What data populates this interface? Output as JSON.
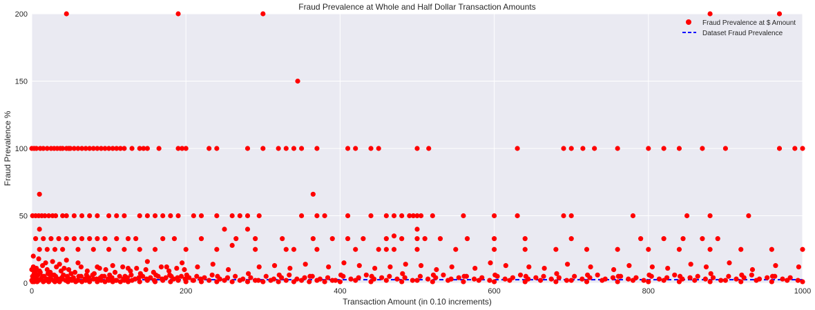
{
  "chart_data": {
    "type": "scatter",
    "title": "Fraud Prevalence at Whole and Half Dollar Transaction Amounts",
    "xlabel": "Transaction Amount (in 0.10 increments)",
    "ylabel": "Fraud Prevalence %",
    "xlim": [
      0,
      1000
    ],
    "ylim": [
      0,
      200
    ],
    "xticks": [
      "0",
      "200",
      "400",
      "600",
      "800",
      "1000"
    ],
    "yticks": [
      "0",
      "50",
      "100",
      "150",
      "200"
    ],
    "grid": true,
    "legend_position": "top-right",
    "colors": {
      "background": "#eaeaf2",
      "grid": "#ffffff",
      "points": "#ff0000",
      "reference_line": "#0000ff"
    },
    "series": [
      {
        "name": "Fraud Prevalence at $ Amount",
        "marker": "o",
        "x": [
          0,
          1,
          2,
          3,
          4,
          5,
          7,
          9,
          12,
          15,
          18,
          22,
          25,
          28,
          30,
          33,
          36,
          40,
          44,
          47,
          52,
          57,
          60,
          65,
          70,
          75,
          80,
          85,
          90,
          95,
          100,
          105,
          110,
          115,
          120,
          125,
          130,
          140,
          150,
          160,
          170,
          180,
          190,
          200,
          210,
          220,
          230,
          240,
          250,
          260,
          270,
          280,
          290,
          300,
          310,
          320,
          330,
          340,
          350,
          360,
          370,
          380,
          390,
          400,
          420,
          440,
          460,
          480,
          500,
          520,
          540,
          560,
          580,
          600,
          620,
          640,
          660,
          680,
          700,
          720,
          740,
          760,
          780,
          800,
          820,
          840,
          860,
          880,
          900,
          920,
          940,
          960,
          980,
          1000,
          1,
          3,
          5,
          8,
          11,
          16,
          21,
          26,
          31,
          41,
          51,
          61,
          71,
          81,
          91,
          101,
          121,
          141,
          161,
          181,
          201,
          241,
          281,
          321,
          361,
          401,
          441,
          481,
          521,
          561,
          601,
          641,
          681,
          721,
          761,
          801,
          841,
          881,
          921,
          961,
          0,
          2,
          4,
          6,
          10,
          14,
          20,
          24,
          32,
          38,
          42,
          48,
          56,
          64,
          72,
          88,
          96,
          108,
          118,
          128,
          136,
          148,
          158,
          168,
          178,
          188,
          198,
          2,
          6,
          8,
          14,
          19,
          24,
          29,
          34,
          39,
          46,
          49,
          54,
          59,
          64,
          69,
          74,
          79,
          84,
          89,
          94,
          99,
          104,
          109,
          114,
          119,
          124,
          129,
          134,
          139,
          144,
          149,
          154,
          159,
          164,
          169,
          174,
          179,
          184,
          189,
          194,
          199,
          204,
          209,
          214,
          219,
          224,
          234,
          244,
          254,
          264,
          274,
          284,
          294,
          304,
          314,
          324,
          334,
          344,
          354,
          364,
          374,
          384,
          394,
          404,
          414,
          424,
          434,
          444,
          454,
          464,
          474,
          484,
          494,
          504,
          514,
          524,
          534,
          544,
          554,
          564,
          574,
          584,
          594,
          604,
          614,
          624,
          634,
          644,
          654,
          664,
          674,
          684,
          694,
          704,
          714,
          724,
          734,
          744,
          754,
          764,
          774,
          784,
          794,
          804,
          814,
          824,
          834,
          844,
          854,
          864,
          874,
          884,
          894,
          904,
          914,
          924,
          934,
          944,
          954,
          964,
          974,
          984,
          994,
          10,
          45,
          190,
          300,
          880,
          970,
          345,
          0,
          3,
          6,
          11,
          15,
          20,
          25,
          29,
          33,
          37,
          40,
          45,
          48,
          50,
          55,
          60,
          65,
          70,
          75,
          80,
          85,
          90,
          95,
          100,
          105,
          110,
          115,
          120,
          130,
          140,
          145,
          150,
          165,
          190,
          195,
          200,
          230,
          240,
          280,
          300,
          320,
          330,
          340,
          350,
          370,
          410,
          420,
          440,
          450,
          500,
          515,
          630,
          690,
          700,
          715,
          730,
          760,
          800,
          820,
          840,
          870,
          900,
          970,
          990,
          1000,
          1,
          5,
          9,
          13,
          17,
          22,
          27,
          31,
          40,
          45,
          55,
          65,
          75,
          85,
          100,
          110,
          120,
          140,
          150,
          160,
          170,
          180,
          190,
          210,
          220,
          240,
          260,
          270,
          280,
          295,
          350,
          370,
          380,
          410,
          440,
          460,
          470,
          480,
          490,
          495,
          500,
          505,
          520,
          560,
          600,
          630,
          690,
          700,
          780,
          850,
          880,
          930,
          10,
          250,
          260,
          280,
          340,
          460,
          470,
          500,
          510,
          365,
          5,
          15,
          25,
          35,
          45,
          55,
          65,
          75,
          85,
          95,
          110,
          125,
          135,
          170,
          185,
          220,
          265,
          290,
          325,
          365,
          390,
          410,
          430,
          460,
          480,
          500,
          530,
          565,
          600,
          640,
          700,
          790,
          820,
          845,
          870,
          890,
          10,
          20,
          30,
          40,
          60,
          80,
          100,
          120,
          140,
          160,
          200,
          240,
          290,
          330,
          370,
          420,
          450,
          470,
          500,
          550,
          600,
          640,
          680,
          720,
          760,
          800,
          840,
          880,
          920,
          960,
          1000,
          2,
          9,
          18,
          27,
          36,
          45,
          60,
          85,
          105,
          125,
          150,
          175,
          195,
          215,
          235,
          255,
          295,
          315,
          335,
          355,
          385,
          405,
          425,
          445,
          465,
          485,
          505,
          525,
          545,
          575,
          595,
          615,
          645,
          665,
          695,
          725,
          755,
          775,
          805,
          825,
          855,
          875,
          905,
          935,
          965,
          995
        ],
        "y": [
          2,
          1,
          3,
          1,
          2,
          4,
          1,
          2,
          3,
          1,
          2,
          1,
          3,
          2,
          1,
          2,
          1,
          3,
          2,
          1,
          2,
          1,
          2,
          1,
          2,
          1,
          3,
          1,
          2,
          1,
          2,
          1,
          2,
          1,
          2,
          1,
          2,
          1,
          2,
          1,
          2,
          1,
          2,
          1,
          2,
          1,
          2,
          1,
          2,
          1,
          2,
          1,
          2,
          1,
          2,
          1,
          2,
          1,
          2,
          1,
          2,
          1,
          2,
          1,
          2,
          1,
          2,
          1,
          2,
          1,
          2,
          1,
          2,
          1,
          2,
          1,
          2,
          1,
          2,
          1,
          2,
          1,
          2,
          1,
          2,
          1,
          2,
          1,
          2,
          1,
          2,
          1,
          2,
          1,
          5,
          7,
          9,
          6,
          8,
          5,
          7,
          6,
          5,
          6,
          7,
          5,
          6,
          7,
          5,
          6,
          5,
          7,
          6,
          5,
          6,
          5,
          7,
          6,
          5,
          6,
          5,
          7,
          6,
          5,
          6,
          5,
          7,
          6,
          5,
          6,
          5,
          7,
          6,
          5,
          10,
          12,
          8,
          11,
          9,
          13,
          10,
          8,
          12,
          9,
          11,
          10,
          8,
          12,
          9,
          11,
          10,
          8,
          12,
          9,
          11,
          10,
          8,
          12,
          9,
          11,
          10,
          3,
          4,
          2,
          5,
          3,
          4,
          6,
          3,
          4,
          5,
          3,
          4,
          2,
          5,
          3,
          4,
          6,
          3,
          4,
          5,
          3,
          4,
          2,
          5,
          3,
          4,
          6,
          3,
          4,
          5,
          3,
          4,
          2,
          5,
          3,
          4,
          6,
          3,
          4,
          5,
          3,
          4,
          2,
          5,
          3,
          4,
          6,
          3,
          4,
          5,
          3,
          4,
          2,
          5,
          3,
          4,
          6,
          3,
          4,
          5,
          3,
          4,
          2,
          5,
          3,
          4,
          6,
          3,
          4,
          5,
          3,
          4,
          2,
          5,
          3,
          4,
          6,
          3,
          4,
          5,
          3,
          4,
          2,
          5,
          3,
          4,
          6,
          3,
          4,
          5,
          3,
          4,
          2,
          5,
          3,
          4,
          6,
          3,
          4,
          5,
          3,
          4,
          2,
          5,
          3,
          4,
          6,
          3,
          4,
          5,
          3,
          4,
          2,
          5,
          3,
          4,
          6,
          3,
          4,
          5,
          3,
          4,
          2,
          66,
          200,
          200,
          200,
          200,
          200,
          150,
          100,
          100,
          100,
          100,
          100,
          100,
          100,
          100,
          100,
          100,
          100,
          100,
          100,
          100,
          100,
          100,
          100,
          100,
          100,
          100,
          100,
          100,
          100,
          100,
          100,
          100,
          100,
          100,
          100,
          100,
          100,
          100,
          100,
          100,
          100,
          100,
          100,
          100,
          100,
          100,
          100,
          100,
          100,
          100,
          100,
          100,
          100,
          100,
          100,
          100,
          100,
          100,
          100,
          100,
          100,
          100,
          100,
          100,
          100,
          100,
          100,
          100,
          100,
          100,
          100,
          50,
          50,
          50,
          50,
          50,
          50,
          50,
          50,
          50,
          50,
          50,
          50,
          50,
          50,
          50,
          50,
          50,
          50,
          50,
          50,
          50,
          50,
          50,
          50,
          50,
          50,
          50,
          50,
          50,
          50,
          50,
          50,
          50,
          50,
          50,
          50,
          50,
          50,
          50,
          50,
          50,
          50,
          50,
          50,
          50,
          50,
          50,
          50,
          50,
          50,
          50,
          50,
          40,
          40,
          28,
          40,
          25,
          25,
          35,
          40,
          33,
          66,
          33,
          33,
          33,
          33,
          33,
          33,
          33,
          33,
          33,
          33,
          33,
          33,
          33,
          33,
          33,
          33,
          33,
          33,
          33,
          33,
          33,
          33,
          33,
          33,
          33,
          33,
          33,
          33,
          33,
          33,
          33,
          33,
          33,
          33,
          33,
          33,
          25,
          25,
          25,
          25,
          25,
          25,
          25,
          25,
          25,
          25,
          25,
          25,
          25,
          25,
          25,
          25,
          25,
          25,
          25,
          25,
          25,
          25,
          25,
          25,
          25,
          25,
          25,
          25,
          25,
          25,
          25,
          20,
          18,
          15,
          16,
          14,
          17,
          15,
          12,
          13,
          11,
          16,
          12,
          15,
          12,
          14,
          10,
          12,
          13,
          11,
          14,
          12,
          15,
          13,
          11,
          12,
          14,
          13,
          10,
          12,
          11,
          15,
          13,
          12,
          11,
          14,
          12,
          10,
          13,
          12,
          11,
          14,
          12,
          15,
          10,
          13,
          12
        ]
      },
      {
        "name": "Dataset Fraud Prevalence",
        "style": "dashed",
        "y": 2.5
      }
    ]
  }
}
